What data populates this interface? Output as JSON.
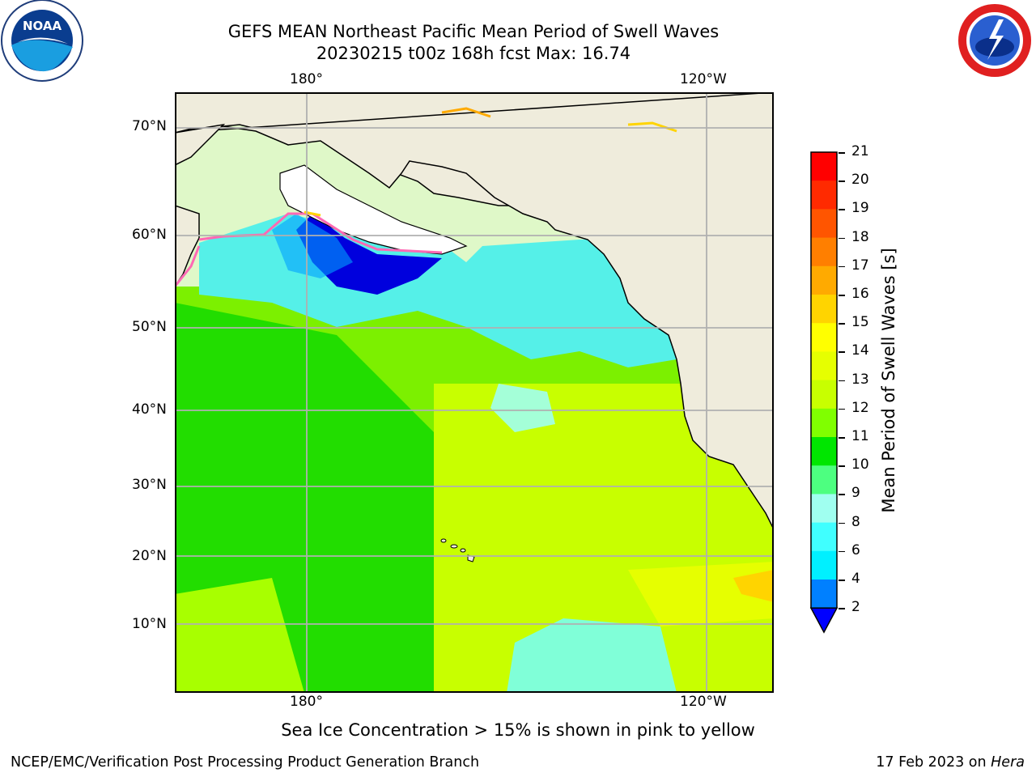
{
  "title": {
    "line1": "GEFS MEAN Northeast Pacific Mean Period of Swell Waves",
    "line2": "20230215 t00z 168h fcst   Max: 16.74"
  },
  "logos": {
    "left": {
      "icon": "noaa-logo",
      "text": "NOAA"
    },
    "right": {
      "icon": "nws-logo",
      "text": "NATIONAL WEATHER SERVICE"
    }
  },
  "map": {
    "lon_labels": [
      "180°",
      "120°W"
    ],
    "lat_labels": [
      "70°N",
      "60°N",
      "50°N",
      "40°N",
      "30°N",
      "20°N",
      "10°N"
    ]
  },
  "colorbar": {
    "label": "Mean Period of Swell Waves [s]",
    "ticks": [
      "21",
      "20",
      "19",
      "18",
      "17",
      "16",
      "15",
      "14",
      "13",
      "12",
      "11",
      "10",
      "9",
      "8",
      "6",
      "4",
      "2"
    ],
    "colors": [
      "#ff0000",
      "#ff2a00",
      "#ff5500",
      "#ff7f00",
      "#ffaa00",
      "#ffd400",
      "#ffff00",
      "#e6ff00",
      "#c8ff00",
      "#80ff00",
      "#00e600",
      "#4dff80",
      "#a0fff0",
      "#40ffff",
      "#00f0ff",
      "#0080ff",
      "#0000ff"
    ]
  },
  "caption": "Sea Ice Concentration > 15% is shown in pink to yellow",
  "footer": {
    "left": "NCEP/EMC/Verification Post Processing Product Generation Branch",
    "right_prefix": "17 Feb 2023 on ",
    "right_host": "Hera"
  }
}
